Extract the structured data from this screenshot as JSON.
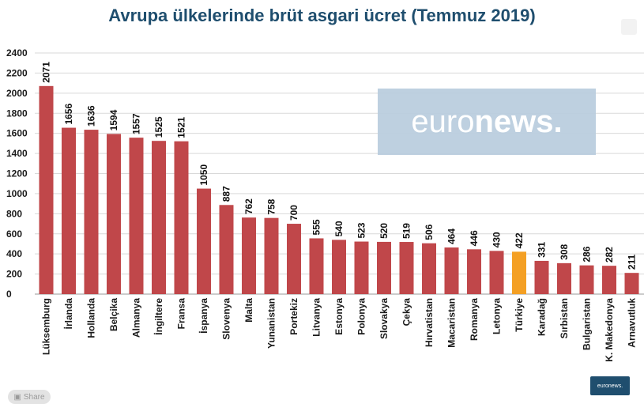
{
  "chart_data": {
    "type": "bar",
    "title": "Avrupa ülkelerinde brüt asgari ücret (Temmuz 2019)",
    "xlabel": "",
    "ylabel": "",
    "ylim": [
      0,
      2400
    ],
    "yticks": [
      0,
      200,
      400,
      600,
      800,
      1000,
      1200,
      1400,
      1600,
      1800,
      2000,
      2200,
      2400
    ],
    "grid": true,
    "categories": [
      "Lüksemburg",
      "İrlanda",
      "Hollanda",
      "Belçika",
      "Almanya",
      "İngiltere",
      "Fransa",
      "İspanya",
      "Slovenya",
      "Malta",
      "Yunanistan",
      "Portekiz",
      "Litvanya",
      "Estonya",
      "Polonya",
      "Slovakya",
      "Çekya",
      "Hırvatistan",
      "Macaristan",
      "Romanya",
      "Letonya",
      "Türkiye",
      "Karadağ",
      "Sırbistan",
      "Bulgaristan",
      "K. Makedonya",
      "Arnavutluk"
    ],
    "values": [
      2071,
      1656,
      1636,
      1594,
      1557,
      1525,
      1521,
      1050,
      887,
      762,
      758,
      700,
      555,
      540,
      523,
      520,
      519,
      506,
      464,
      446,
      430,
      422,
      331,
      308,
      286,
      282,
      211
    ],
    "bar_color": "#c0474a",
    "highlight": {
      "category": "Türkiye",
      "color": "#f4a024"
    }
  },
  "watermark": {
    "light": "euro",
    "bold": "news."
  },
  "share_label": "Share",
  "logo_small": "euronews."
}
